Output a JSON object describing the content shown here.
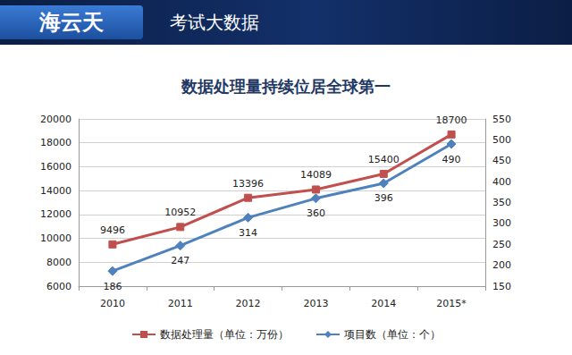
{
  "header": {
    "logo": "海云天",
    "title": "考试大数据"
  },
  "chart_data": {
    "type": "line",
    "title": "数据处理量持续位居全球第一",
    "categories": [
      "2010",
      "2011",
      "2012",
      "2013",
      "2014",
      "2015*"
    ],
    "series": [
      {
        "name": "数据处理量（单位：万份）",
        "color": "#c0504d",
        "marker": "square",
        "values": [
          9496,
          10952,
          13396,
          14089,
          15400,
          18700
        ]
      },
      {
        "name": "项目数（单位：个）",
        "color": "#4f81bd",
        "marker": "diamond",
        "axis": "y2",
        "values": [
          186,
          247,
          314,
          360,
          396,
          490
        ]
      }
    ],
    "ylim": [
      6000,
      20000
    ],
    "yticks": [
      6000,
      8000,
      10000,
      12000,
      14000,
      16000,
      18000,
      20000
    ],
    "y2lim": [
      150,
      550
    ],
    "y2ticks": [
      150,
      200,
      250,
      300,
      350,
      400,
      450,
      500,
      550
    ],
    "grid": true,
    "legend": "bottom",
    "data_labels": true
  }
}
